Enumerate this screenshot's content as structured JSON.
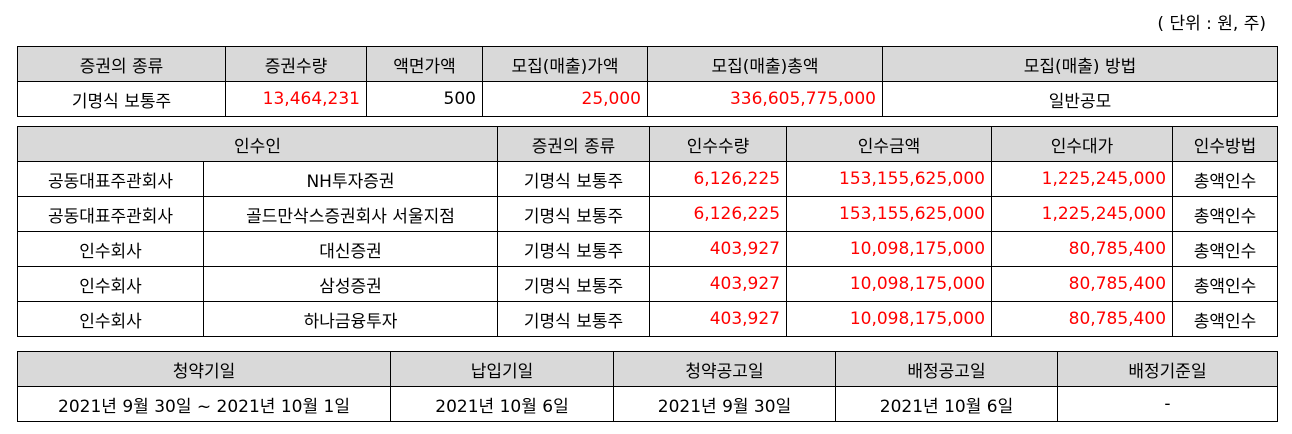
{
  "unit_note": "( 단위 : 원, 주)",
  "offering": {
    "headers": [
      "증권의 종류",
      "증권수량",
      "액면가액",
      "모집(매출)가액",
      "모집(매출)총액",
      "모집(매출) 방법"
    ],
    "row": {
      "type": "기명식 보통주",
      "quantity": "13,464,231",
      "par_value": "500",
      "price": "25,000",
      "total": "336,605,775,000",
      "method": "일반공모"
    }
  },
  "underwriters": {
    "headers": [
      "인수인",
      "증권의 종류",
      "인수수량",
      "인수금액",
      "인수대가",
      "인수방법"
    ],
    "rows": [
      {
        "role": "공동대표주관회사",
        "name": "NH투자증권",
        "type": "기명식 보통주",
        "qty": "6,126,225",
        "amount": "153,155,625,000",
        "fee": "1,225,245,000",
        "method": "총액인수"
      },
      {
        "role": "공동대표주관회사",
        "name": "골드만삭스증권회사 서울지점",
        "type": "기명식 보통주",
        "qty": "6,126,225",
        "amount": "153,155,625,000",
        "fee": "1,225,245,000",
        "method": "총액인수"
      },
      {
        "role": "인수회사",
        "name": "대신증권",
        "type": "기명식 보통주",
        "qty": "403,927",
        "amount": "10,098,175,000",
        "fee": "80,785,400",
        "method": "총액인수"
      },
      {
        "role": "인수회사",
        "name": "삼성증권",
        "type": "기명식 보통주",
        "qty": "403,927",
        "amount": "10,098,175,000",
        "fee": "80,785,400",
        "method": "총액인수"
      },
      {
        "role": "인수회사",
        "name": "하나금융투자",
        "type": "기명식 보통주",
        "qty": "403,927",
        "amount": "10,098,175,000",
        "fee": "80,785,400",
        "method": "총액인수"
      }
    ]
  },
  "schedule": {
    "headers": [
      "청약기일",
      "납입기일",
      "청약공고일",
      "배정공고일",
      "배정기준일"
    ],
    "values": [
      "2021년 9월 30일 ~ 2021년 10월 1일",
      "2021년 10월 6일",
      "2021년 9월 30일",
      "2021년 10월 6일",
      "-"
    ]
  },
  "colors": {
    "header_bg": "#d9d9d9",
    "number_red": "#ff0000",
    "border": "#000000"
  }
}
